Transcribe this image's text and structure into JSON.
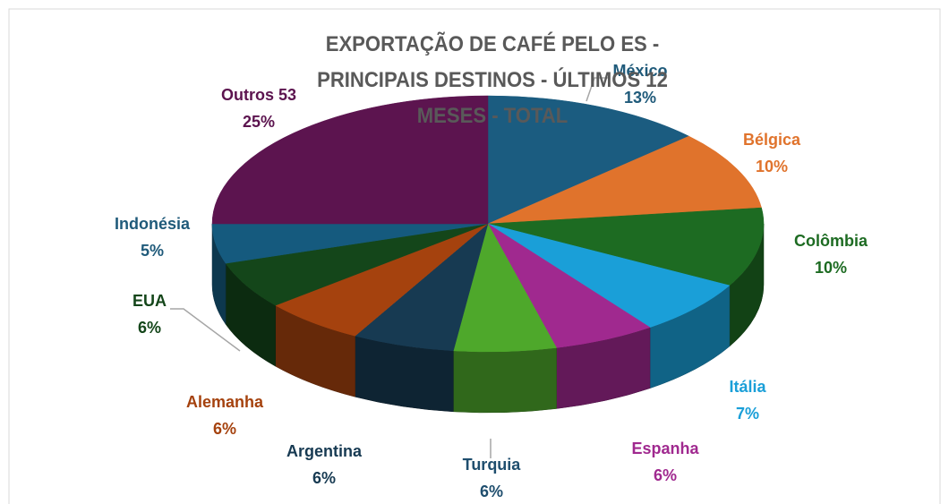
{
  "chart_data": {
    "type": "pie",
    "title": "EXPORTAÇÃO DE CAFÉ PELO ES - PRINCIPAIS DESTINOS - ÚLTIMOS 12 MESES - TOTAL",
    "categories": [
      "México",
      "Bélgica",
      "Colômbia",
      "Itália",
      "Espanha",
      "Turquia",
      "Argentina",
      "Alemanha",
      "EUA",
      "Indonésia",
      "Outros 53"
    ],
    "values": [
      13,
      10,
      10,
      7,
      6,
      6,
      6,
      6,
      6,
      5,
      25
    ],
    "value_labels": [
      "13%",
      "10%",
      "10%",
      "7%",
      "6%",
      "6%",
      "6%",
      "6%",
      "6%",
      "5%",
      "25%"
    ],
    "colors": [
      "#1b5c80",
      "#e0732c",
      "#1d6b22",
      "#1a9fd8",
      "#a0298f",
      "#4ea82b",
      "#173a52",
      "#a5420e",
      "#14461a",
      "#155a7e",
      "#5c144f"
    ]
  }
}
